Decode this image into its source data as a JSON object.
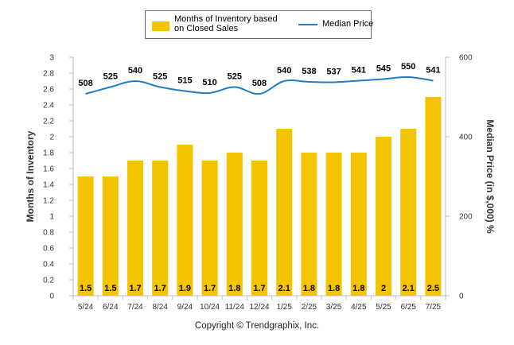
{
  "chart_data": {
    "type": "bar",
    "categories": [
      "5/24",
      "6/24",
      "7/24",
      "8/24",
      "9/24",
      "10/24",
      "11/24",
      "12/24",
      "1/25",
      "2/25",
      "3/25",
      "4/25",
      "5/25",
      "6/25",
      "7/25"
    ],
    "series": [
      {
        "name": "Months of Inventory based on Closed Sales",
        "type": "bar",
        "axis": "left",
        "values": [
          1.5,
          1.5,
          1.7,
          1.7,
          1.9,
          1.7,
          1.8,
          1.7,
          2.1,
          1.8,
          1.8,
          1.8,
          2,
          2.1,
          2.5
        ],
        "labels": [
          "1.5",
          "1.5",
          "1.7",
          "1.7",
          "1.9",
          "1.7",
          "1.8",
          "1.7",
          "2.1",
          "1.8",
          "1.8",
          "1.8",
          "2",
          "2.1",
          "2.5"
        ]
      },
      {
        "name": "Median Price",
        "type": "line",
        "axis": "right",
        "values": [
          508,
          525,
          540,
          525,
          515,
          510,
          525,
          508,
          540,
          538,
          537,
          541,
          545,
          550,
          541
        ]
      }
    ],
    "ylabel": "Months of Inventory",
    "ylabel_right": "Median Price (in $,000) %",
    "ylim": [
      0,
      3
    ],
    "ylim_right": [
      0,
      600
    ],
    "yticks": [
      "0",
      "0.2",
      "0.4",
      "0.6",
      "0.8",
      "1",
      "1.2",
      "1.4",
      "1.6",
      "1.8",
      "2",
      "2.2",
      "2.4",
      "2.6",
      "2.8",
      "3"
    ],
    "yticks_right": [
      "0",
      "200",
      "400",
      "600"
    ],
    "grid": false,
    "legend_position": "top-center",
    "colors": {
      "bar": "#F5C400",
      "line": "#1F7DC1"
    }
  },
  "legend": {
    "bar_label": "Months of Inventory based on Closed Sales",
    "line_label": "Median Price"
  },
  "footer": {
    "copyright": "Copyright © Trendgraphix, Inc."
  }
}
